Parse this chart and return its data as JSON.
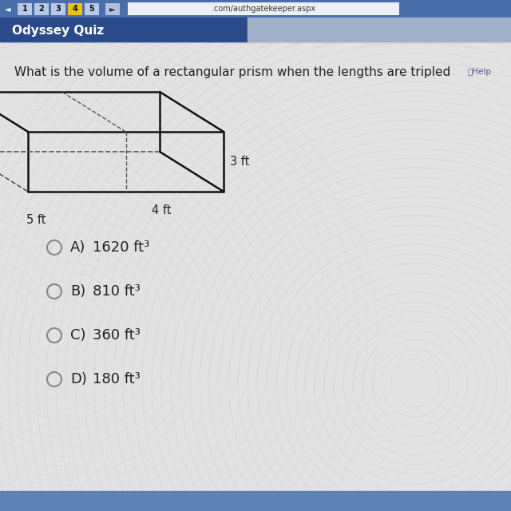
{
  "header": "Odyssey Quiz",
  "header_bg": "#2a4a8a",
  "header_text_color": "#ffffff",
  "browser_bg": "#4a6ea8",
  "tab_numbers": [
    "1",
    "2",
    "3",
    "4",
    "5"
  ],
  "tab_colors": [
    "#b8c8e8",
    "#b8c8e8",
    "#b8c8e8",
    "#e8c020",
    "#b8c8e8"
  ],
  "url_text": ".com/authgatekeeper.aspx",
  "question_line1": "What is the volume of a rectangular prism when the lengths are tripled",
  "dim_l": "5 ft",
  "dim_w": "4 ft",
  "dim_h": "3 ft",
  "choices": [
    {
      "label": "A)",
      "value": "1620 ft³"
    },
    {
      "label": "B)",
      "value": "810 ft³"
    },
    {
      "label": "C)",
      "value": "360 ft³"
    },
    {
      "label": "D)",
      "value": "180 ft³"
    }
  ],
  "bg_color": "#d8d8d8",
  "content_bg": "#e8e8e8",
  "text_color": "#222222",
  "circle_color": "#888888",
  "prism_color": "#111111",
  "dashed_color": "#555555",
  "bottom_bar_color": "#6080b8"
}
